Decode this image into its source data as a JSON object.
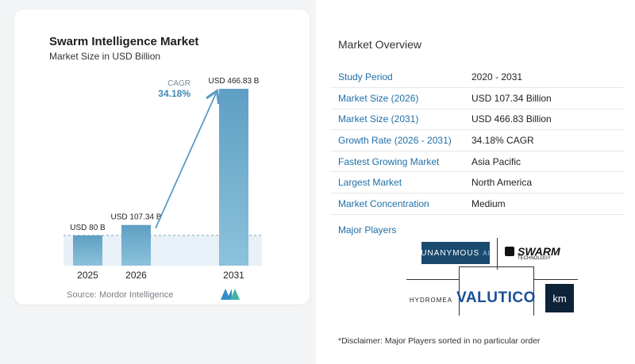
{
  "chart_data": {
    "type": "bar",
    "title": "Swarm Intelligence Market",
    "subtitle": "Market Size in USD Billion",
    "categories": [
      "2025",
      "2026",
      "2031"
    ],
    "values": [
      80,
      107.34,
      466.83
    ],
    "value_labels": [
      "USD 80 B",
      "USD 107.34 B",
      "USD 466.83 B"
    ],
    "unit": "USD Billion",
    "cagr_label": "CAGR",
    "cagr_value": "34.18%",
    "colors": {
      "bar_top": "#6aa9cb",
      "bar_bottom": "#7fb9d5",
      "arrow": "#5a9cc4"
    }
  },
  "source": "Source:  Mordor Intelligence",
  "overview": {
    "title": "Market Overview",
    "rows": [
      {
        "label": "Study Period",
        "value": "2020 - 2031"
      },
      {
        "label": "Market Size (2026)",
        "value": "USD 107.34 Billion"
      },
      {
        "label": "Market Size (2031)",
        "value": "USD 466.83 Billion"
      },
      {
        "label": "Growth Rate (2026 - 2031)",
        "value": "34.18% CAGR"
      },
      {
        "label": "Fastest Growing Market",
        "value": "Asia Pacific"
      },
      {
        "label": "Largest Market",
        "value": "North America"
      },
      {
        "label": "Market Concentration",
        "value": "Medium"
      }
    ]
  },
  "players": {
    "title": "Major Players",
    "logos": [
      {
        "name": "UNANYMOUS AI",
        "text": "UNANYMOUS",
        "suffix": "AI",
        "color": "#1a4a6e"
      },
      {
        "name": "SWARM TECHNOLOGY",
        "text": "SWARM",
        "sub": "TECHNOLOGY",
        "color": "#111111"
      },
      {
        "name": "HYDROMEA",
        "text": "HYDROMEA",
        "color": "#222222"
      },
      {
        "name": "VALUTICO",
        "text": "VALUTICO",
        "color": "#1a4f99"
      },
      {
        "name": "km",
        "text": "km",
        "color": "#0e2238"
      }
    ]
  },
  "disclaimer": "*Disclaimer: Major Players sorted in no particular order"
}
